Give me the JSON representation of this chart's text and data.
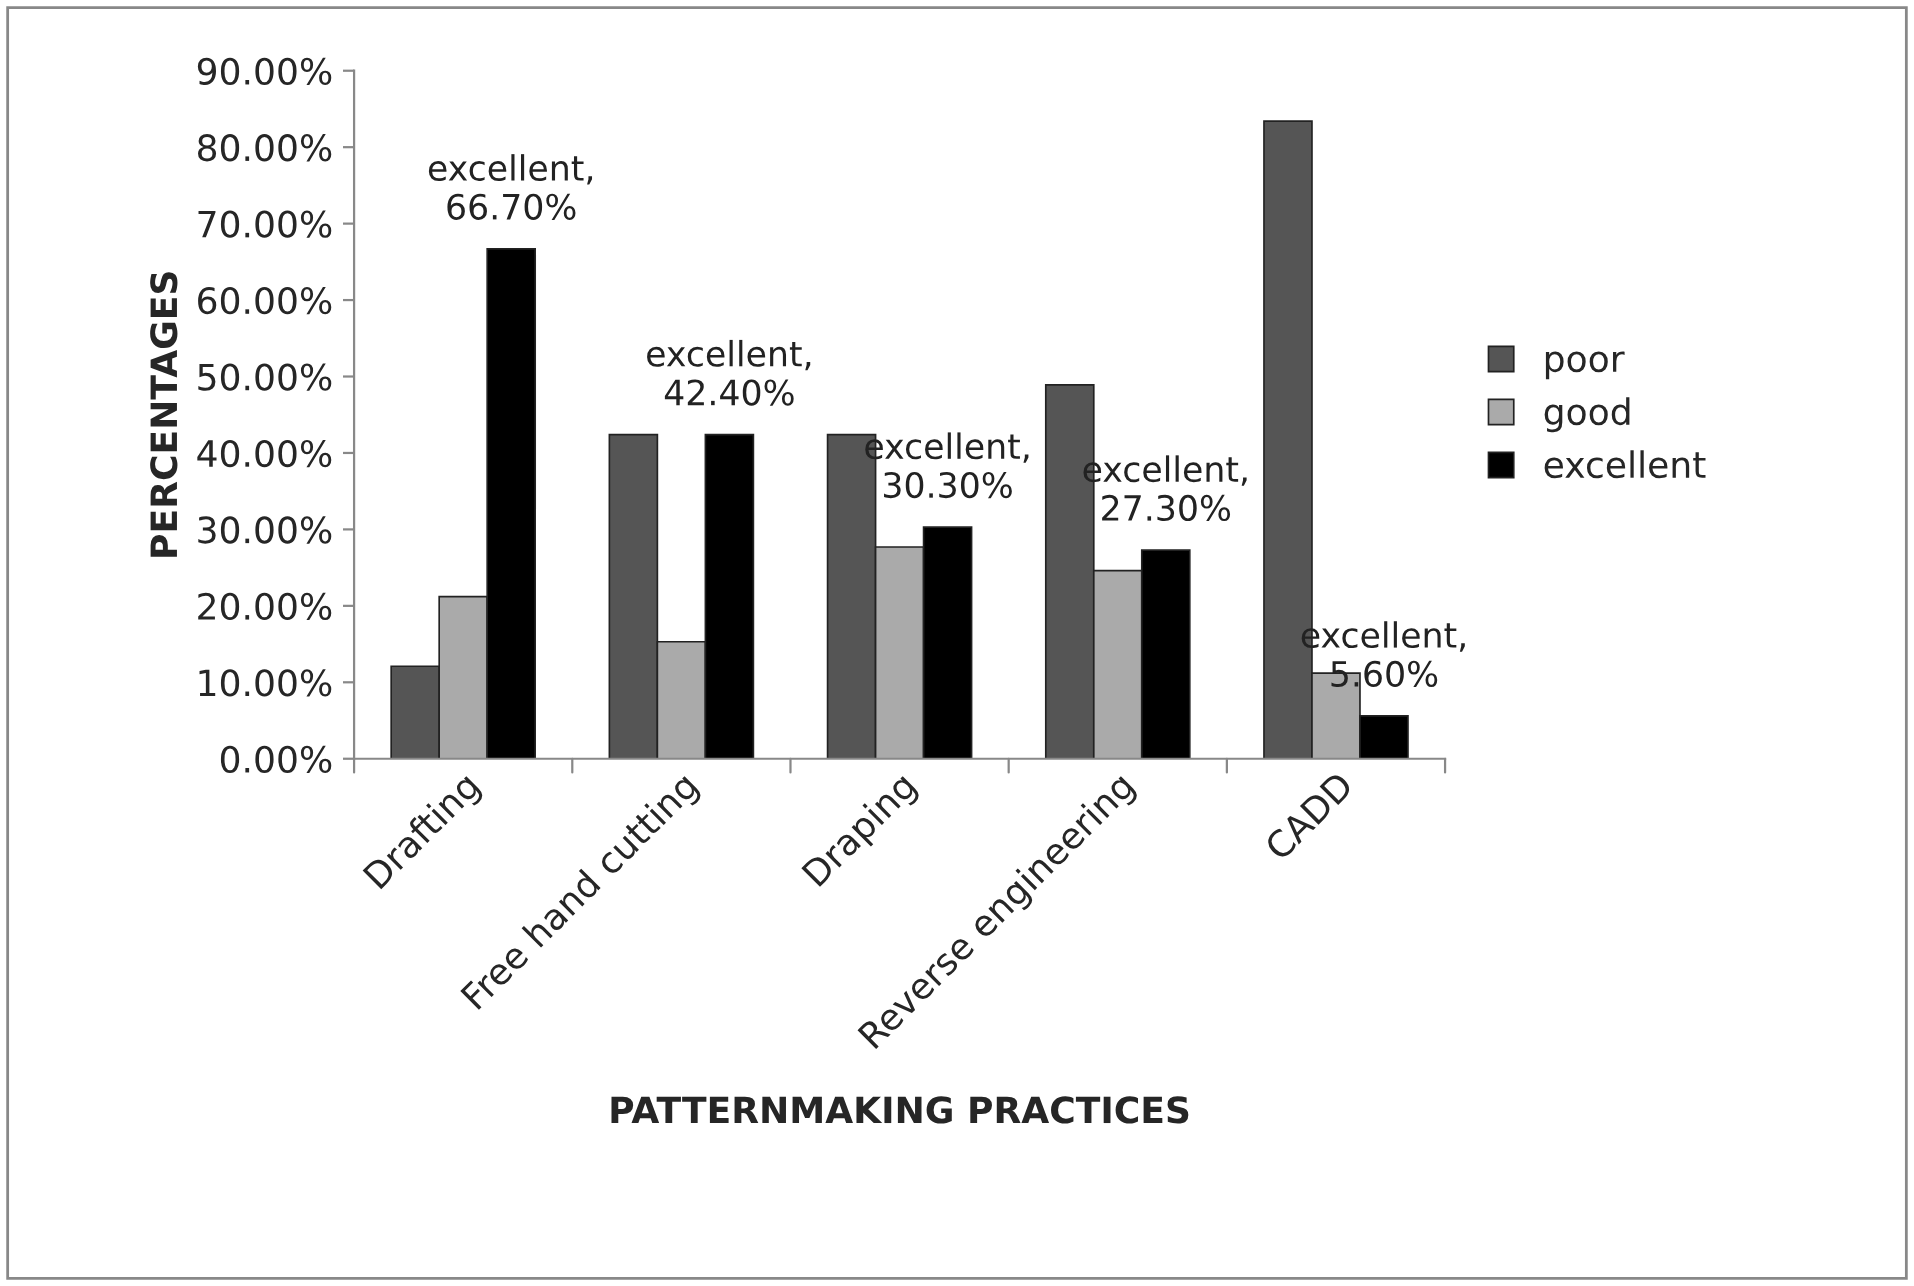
{
  "chart_data": {
    "type": "bar",
    "xlabel": "PATTERNMAKING PRACTICES",
    "ylabel": "PERCENTAGES",
    "categories": [
      "Drafting",
      "Free hand cutting",
      "Draping",
      "Reverse engineering",
      "CADD"
    ],
    "series": [
      {
        "name": "poor",
        "color": "#555555",
        "values": [
          12.1,
          42.4,
          42.4,
          48.9,
          83.4
        ]
      },
      {
        "name": "good",
        "color": "#aaaaaa",
        "values": [
          21.2,
          15.3,
          27.7,
          24.6,
          11.2
        ]
      },
      {
        "name": "excellent",
        "color": "#000000",
        "values": [
          66.7,
          42.4,
          30.3,
          27.3,
          5.6
        ],
        "value_labels": [
          "excellent,\n66.70%",
          "excellent,\n42.40%",
          "excellent,\n30.30%",
          "excellent,\n27.30%",
          "excellent,\n5.60%"
        ]
      }
    ],
    "ylim": [
      0,
      90
    ],
    "yticks": [
      {
        "value": 0,
        "label": "0.00%"
      },
      {
        "value": 10,
        "label": "10.00%"
      },
      {
        "value": 20,
        "label": "20.00%"
      },
      {
        "value": 30,
        "label": "30.00%"
      },
      {
        "value": 40,
        "label": "40.00%"
      },
      {
        "value": 50,
        "label": "50.00%"
      },
      {
        "value": 60,
        "label": "60.00%"
      },
      {
        "value": 70,
        "label": "70.00%"
      },
      {
        "value": 80,
        "label": "80.00%"
      },
      {
        "value": 90,
        "label": "90.00%"
      }
    ],
    "legend": "right",
    "grid": false
  }
}
